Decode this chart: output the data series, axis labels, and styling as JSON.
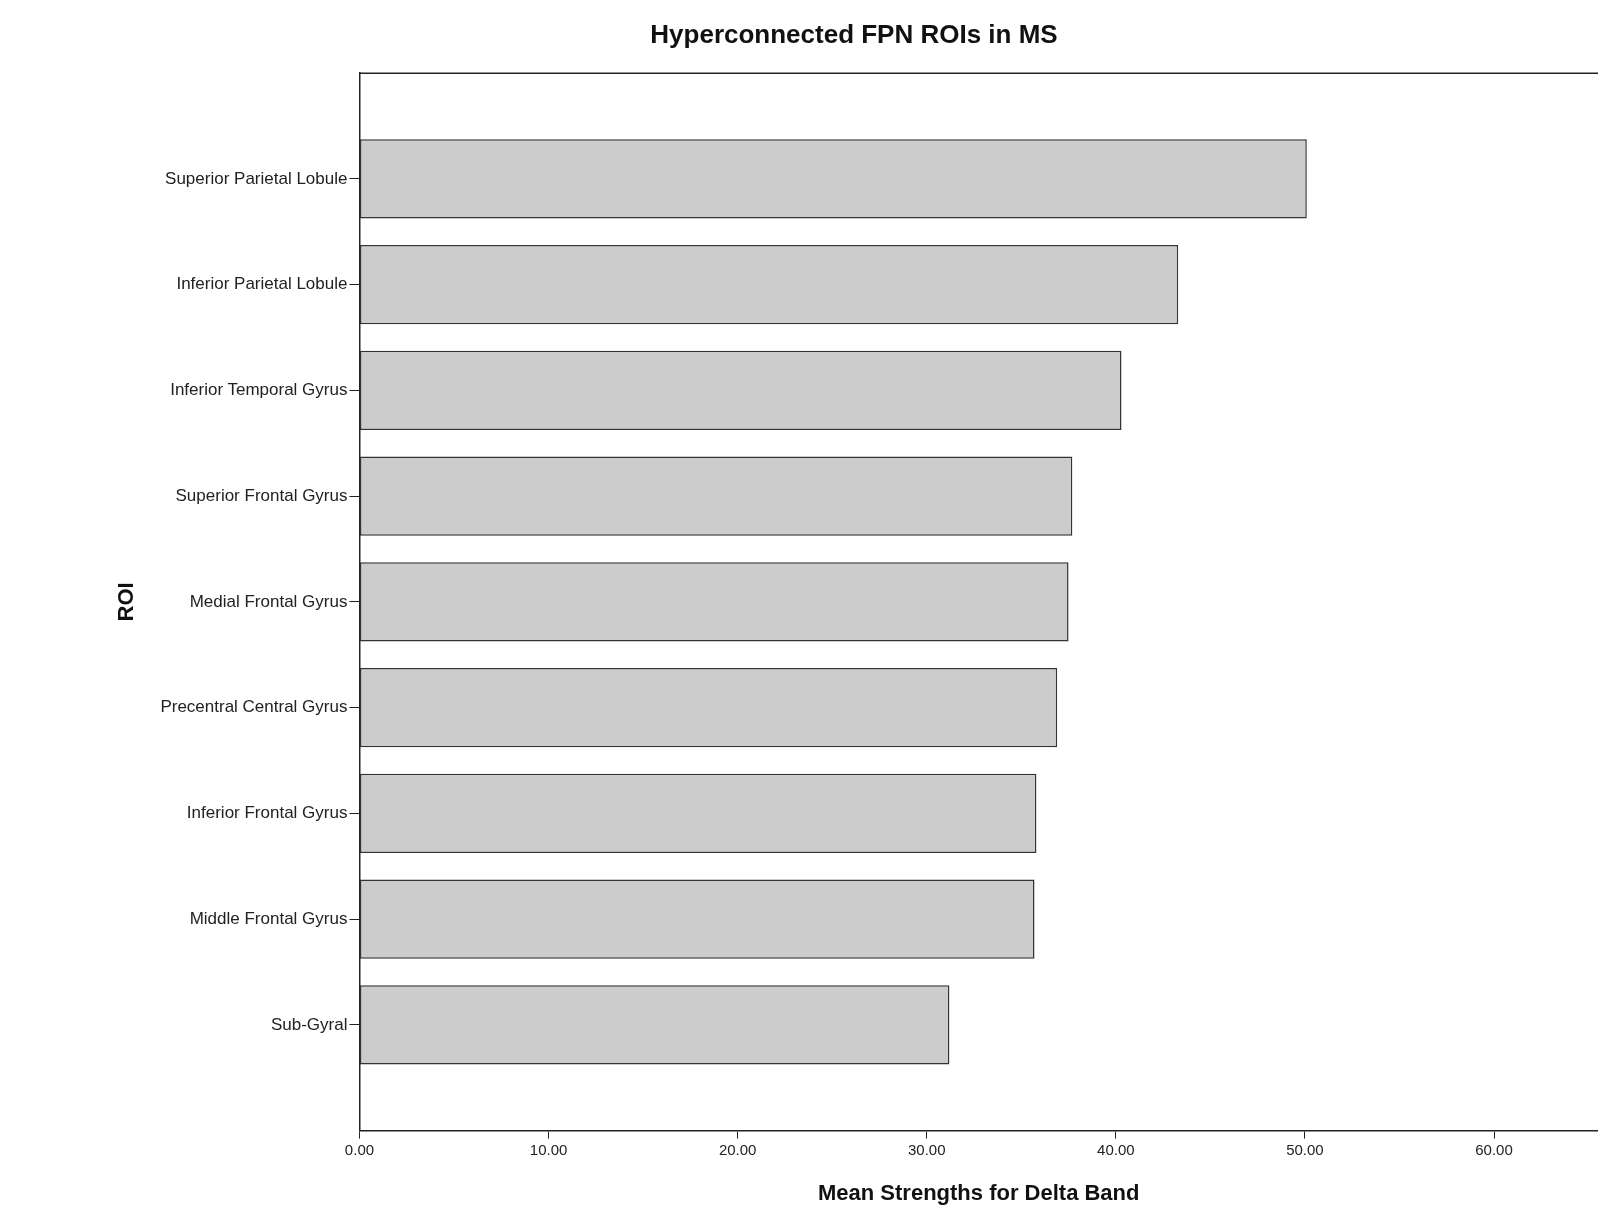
{
  "chart_data": {
    "type": "bar",
    "orientation": "horizontal",
    "title": "Hyperconnected FPN ROIs in MS",
    "xlabel": "Mean Strengths for Delta Band",
    "ylabel": "ROI",
    "categories": [
      "Superior Parietal Lobule",
      "Inferior Parietal Lobule",
      "Inferior Temporal Gyrus",
      "Superior Frontal Gyrus",
      "Medial Frontal Gyrus",
      "Precentral Central Gyrus",
      "Inferior Frontal Gyrus",
      "Middle Frontal Gyrus",
      "Sub-Gyral"
    ],
    "values": [
      50.1,
      43.3,
      40.3,
      37.7,
      37.5,
      36.9,
      35.8,
      35.7,
      31.2
    ],
    "color": "#cccccc",
    "xlim": [
      0,
      65.5
    ],
    "xticks": [
      {
        "value": 0,
        "label": "0.00"
      },
      {
        "value": 10,
        "label": "10.00"
      },
      {
        "value": 20,
        "label": "20.00"
      },
      {
        "value": 30,
        "label": "30.00"
      },
      {
        "value": 40,
        "label": "40.00"
      },
      {
        "value": 50,
        "label": "50.00"
      },
      {
        "value": 60,
        "label": "60.00"
      }
    ],
    "grid": false,
    "legend": false
  }
}
